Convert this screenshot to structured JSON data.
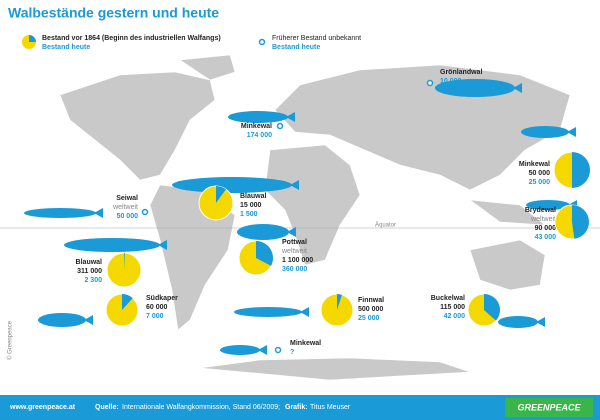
{
  "header": {
    "title": "Walbestände gestern und heute"
  },
  "legend": {
    "before": "Bestand vor 1864 (Beginn des industriellen Walfangs)",
    "today": "Bestand heute",
    "unknown": "Früherer Bestand unbekannt",
    "unknown_today": "Bestand heute"
  },
  "equator": "Äquator",
  "whales": [
    {
      "name": "Grönlandwal",
      "today": {
        "value": 10000,
        "label": "10 000"
      }
    },
    {
      "name": "Minkewal",
      "today": {
        "value": 174000,
        "label": "174 000"
      }
    },
    {
      "name": "Minkewal",
      "before": {
        "value": 50000,
        "label": "50 000"
      },
      "today": {
        "value": 25000,
        "label": "25 000"
      }
    },
    {
      "name": "Seiwal",
      "region": "weltweit",
      "today": {
        "value": 50000,
        "label": "50 000"
      }
    },
    {
      "name": "Blauwal",
      "before": {
        "value": 15000,
        "label": "15 000"
      },
      "today": {
        "value": 1500,
        "label": "1 500"
      }
    },
    {
      "name": "Brydewal",
      "region": "weltweit",
      "before": {
        "value": 90000,
        "label": "90 000"
      },
      "today": {
        "value": 43000,
        "label": "43 000"
      }
    },
    {
      "name": "Blauwal",
      "before": {
        "value": 311000,
        "label": "311 000"
      },
      "today": {
        "value": 2300,
        "label": "2 300"
      }
    },
    {
      "name": "Pottwal",
      "region": "weltweit",
      "before": {
        "value": 1100000,
        "label": "1 100 000"
      },
      "today": {
        "value": 360000,
        "label": "360 000"
      }
    },
    {
      "name": "Südkaper",
      "before": {
        "value": 60000,
        "label": "60 000"
      },
      "today": {
        "value": 7000,
        "label": "7 000"
      }
    },
    {
      "name": "Finnwal",
      "before": {
        "value": 500000,
        "label": "500 000"
      },
      "today": {
        "value": 25000,
        "label": "25 000"
      }
    },
    {
      "name": "Buckelwal",
      "before": {
        "value": 115000,
        "label": "115 000"
      },
      "today": {
        "value": 42000,
        "label": "42 000"
      }
    },
    {
      "name": "Minkewal",
      "today": {
        "label": "?"
      }
    }
  ],
  "footer": {
    "url": "www.greenpeace.at",
    "source_label": "Quelle:",
    "source": "Internationale Walfangkommission, Stand 06/2009;",
    "graphic_label": "Grafik:",
    "graphic": "Titus Meuser",
    "logo": "GREENPEACE"
  },
  "copyright": "© Greenpeace"
}
